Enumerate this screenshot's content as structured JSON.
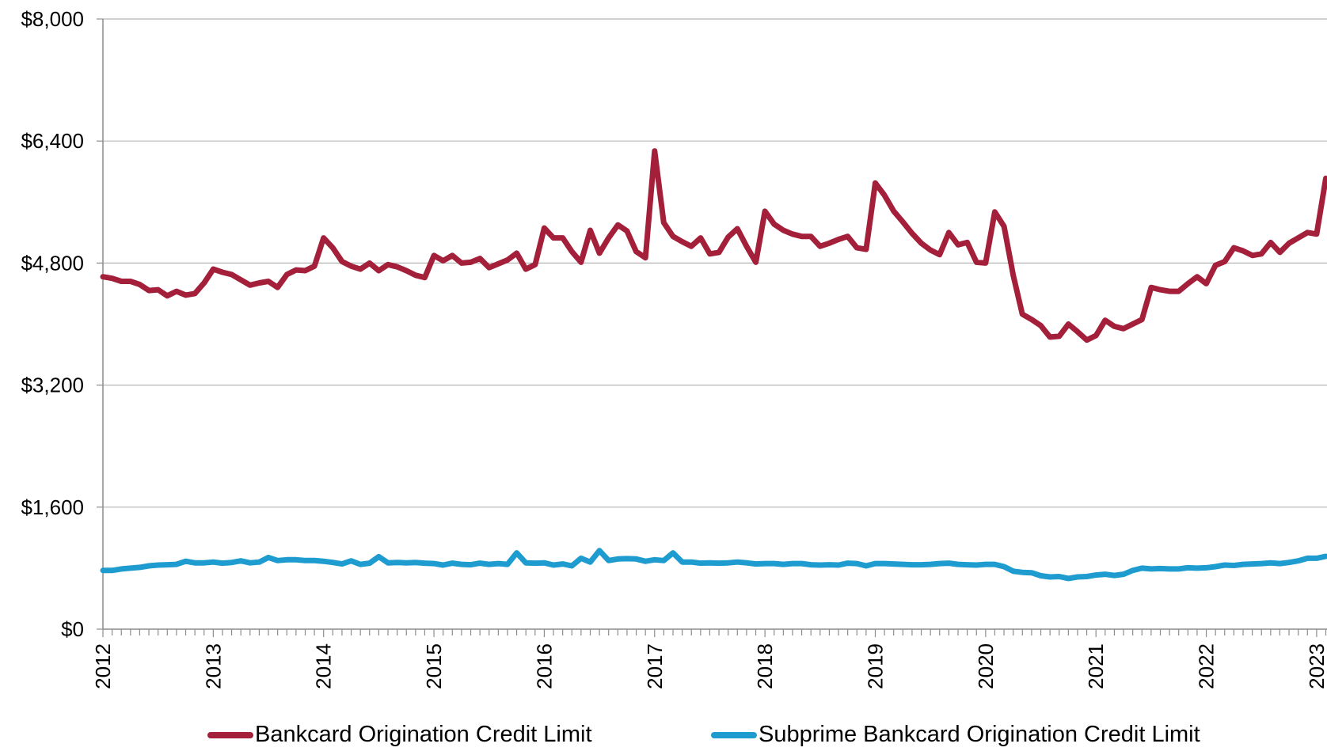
{
  "chart_data": {
    "type": "line",
    "title": "",
    "xlabel": "",
    "ylabel": "",
    "ylim": [
      0,
      8000
    ],
    "yticks": [
      "$0",
      "$1,600",
      "$3,200",
      "$4,800",
      "$6,400",
      "$8,000"
    ],
    "ytick_values": [
      0,
      1600,
      3200,
      4800,
      6400,
      8000
    ],
    "xlim": [
      2012.0,
      2023.0
    ],
    "xticks": [
      "2012",
      "2013",
      "2014",
      "2015",
      "2016",
      "2017",
      "2018",
      "2019",
      "2020",
      "2021",
      "2022",
      "2023"
    ],
    "xtick_values": [
      2012,
      2013,
      2014,
      2015,
      2016,
      2017,
      2018,
      2019,
      2020,
      2021,
      2022,
      2023
    ],
    "grid": "horizontal",
    "legend_position": "bottom",
    "series": [
      {
        "name": "Bankcard Origination Credit Limit",
        "color": "#a31f3a",
        "points": [
          [
            2012.0,
            4620
          ],
          [
            2012.083,
            4600
          ],
          [
            2012.167,
            4560
          ],
          [
            2012.25,
            4560
          ],
          [
            2012.333,
            4520
          ],
          [
            2012.417,
            4440
          ],
          [
            2012.5,
            4450
          ],
          [
            2012.583,
            4370
          ],
          [
            2012.667,
            4430
          ],
          [
            2012.75,
            4380
          ],
          [
            2012.833,
            4400
          ],
          [
            2012.917,
            4540
          ],
          [
            2013.0,
            4720
          ],
          [
            2013.083,
            4680
          ],
          [
            2013.167,
            4650
          ],
          [
            2013.25,
            4580
          ],
          [
            2013.333,
            4510
          ],
          [
            2013.417,
            4540
          ],
          [
            2013.5,
            4560
          ],
          [
            2013.583,
            4480
          ],
          [
            2013.667,
            4650
          ],
          [
            2013.75,
            4710
          ],
          [
            2013.833,
            4700
          ],
          [
            2013.917,
            4760
          ],
          [
            2014.0,
            5130
          ],
          [
            2014.083,
            5000
          ],
          [
            2014.167,
            4820
          ],
          [
            2014.25,
            4760
          ],
          [
            2014.333,
            4720
          ],
          [
            2014.417,
            4800
          ],
          [
            2014.5,
            4700
          ],
          [
            2014.583,
            4780
          ],
          [
            2014.667,
            4750
          ],
          [
            2014.75,
            4700
          ],
          [
            2014.833,
            4640
          ],
          [
            2014.917,
            4610
          ],
          [
            2015.0,
            4900
          ],
          [
            2015.083,
            4830
          ],
          [
            2015.167,
            4900
          ],
          [
            2015.25,
            4800
          ],
          [
            2015.333,
            4810
          ],
          [
            2015.417,
            4860
          ],
          [
            2015.5,
            4740
          ],
          [
            2015.583,
            4790
          ],
          [
            2015.667,
            4840
          ],
          [
            2015.75,
            4930
          ],
          [
            2015.833,
            4720
          ],
          [
            2015.917,
            4780
          ],
          [
            2016.0,
            5260
          ],
          [
            2016.083,
            5130
          ],
          [
            2016.167,
            5130
          ],
          [
            2016.25,
            4950
          ],
          [
            2016.333,
            4810
          ],
          [
            2016.417,
            5230
          ],
          [
            2016.5,
            4930
          ],
          [
            2016.583,
            5130
          ],
          [
            2016.667,
            5300
          ],
          [
            2016.75,
            5220
          ],
          [
            2016.833,
            4950
          ],
          [
            2016.917,
            4870
          ],
          [
            2017.0,
            6270
          ],
          [
            2017.083,
            5330
          ],
          [
            2017.167,
            5150
          ],
          [
            2017.25,
            5080
          ],
          [
            2017.333,
            5020
          ],
          [
            2017.417,
            5130
          ],
          [
            2017.5,
            4920
          ],
          [
            2017.583,
            4940
          ],
          [
            2017.667,
            5140
          ],
          [
            2017.75,
            5250
          ],
          [
            2017.833,
            5020
          ],
          [
            2017.917,
            4810
          ],
          [
            2018.0,
            5480
          ],
          [
            2018.083,
            5310
          ],
          [
            2018.167,
            5230
          ],
          [
            2018.25,
            5180
          ],
          [
            2018.333,
            5150
          ],
          [
            2018.417,
            5150
          ],
          [
            2018.5,
            5020
          ],
          [
            2018.583,
            5060
          ],
          [
            2018.667,
            5110
          ],
          [
            2018.75,
            5150
          ],
          [
            2018.833,
            5000
          ],
          [
            2018.917,
            4980
          ],
          [
            2019.0,
            5850
          ],
          [
            2019.083,
            5690
          ],
          [
            2019.167,
            5480
          ],
          [
            2019.25,
            5340
          ],
          [
            2019.333,
            5190
          ],
          [
            2019.417,
            5060
          ],
          [
            2019.5,
            4970
          ],
          [
            2019.583,
            4910
          ],
          [
            2019.667,
            5200
          ],
          [
            2019.75,
            5040
          ],
          [
            2019.833,
            5070
          ],
          [
            2019.917,
            4810
          ],
          [
            2020.0,
            4800
          ],
          [
            2020.083,
            5470
          ],
          [
            2020.167,
            5280
          ],
          [
            2020.25,
            4640
          ],
          [
            2020.333,
            4130
          ],
          [
            2020.417,
            4060
          ],
          [
            2020.5,
            3980
          ],
          [
            2020.583,
            3830
          ],
          [
            2020.667,
            3840
          ],
          [
            2020.75,
            4000
          ],
          [
            2020.833,
            3900
          ],
          [
            2020.917,
            3790
          ],
          [
            2021.0,
            3850
          ],
          [
            2021.083,
            4050
          ],
          [
            2021.167,
            3970
          ],
          [
            2021.25,
            3940
          ],
          [
            2021.333,
            4000
          ],
          [
            2021.417,
            4060
          ],
          [
            2021.5,
            4480
          ],
          [
            2021.583,
            4450
          ],
          [
            2021.667,
            4430
          ],
          [
            2021.75,
            4430
          ],
          [
            2021.833,
            4530
          ],
          [
            2021.917,
            4620
          ],
          [
            2022.0,
            4530
          ],
          [
            2022.083,
            4770
          ],
          [
            2022.167,
            4820
          ],
          [
            2022.25,
            5000
          ],
          [
            2022.333,
            4960
          ],
          [
            2022.417,
            4900
          ],
          [
            2022.5,
            4920
          ],
          [
            2022.583,
            5070
          ],
          [
            2022.667,
            4940
          ],
          [
            2022.75,
            5060
          ],
          [
            2022.833,
            5130
          ],
          [
            2022.917,
            5200
          ],
          [
            2023.0,
            5180
          ],
          [
            2023.083,
            5910
          ]
        ]
      },
      {
        "name": "Subprime Bankcard Origination Credit Limit",
        "color": "#1e9ccf",
        "points": [
          [
            2012.0,
            770
          ],
          [
            2012.083,
            770
          ],
          [
            2012.167,
            790
          ],
          [
            2012.25,
            800
          ],
          [
            2012.333,
            810
          ],
          [
            2012.417,
            830
          ],
          [
            2012.5,
            840
          ],
          [
            2012.583,
            845
          ],
          [
            2012.667,
            850
          ],
          [
            2012.75,
            890
          ],
          [
            2012.833,
            870
          ],
          [
            2012.917,
            870
          ],
          [
            2013.0,
            880
          ],
          [
            2013.083,
            865
          ],
          [
            2013.167,
            875
          ],
          [
            2013.25,
            895
          ],
          [
            2013.333,
            870
          ],
          [
            2013.417,
            880
          ],
          [
            2013.5,
            940
          ],
          [
            2013.583,
            900
          ],
          [
            2013.667,
            910
          ],
          [
            2013.75,
            910
          ],
          [
            2013.833,
            900
          ],
          [
            2013.917,
            900
          ],
          [
            2014.0,
            890
          ],
          [
            2014.083,
            875
          ],
          [
            2014.167,
            855
          ],
          [
            2014.25,
            895
          ],
          [
            2014.333,
            850
          ],
          [
            2014.417,
            865
          ],
          [
            2014.5,
            950
          ],
          [
            2014.583,
            870
          ],
          [
            2014.667,
            875
          ],
          [
            2014.75,
            870
          ],
          [
            2014.833,
            875
          ],
          [
            2014.917,
            865
          ],
          [
            2015.0,
            860
          ],
          [
            2015.083,
            840
          ],
          [
            2015.167,
            865
          ],
          [
            2015.25,
            850
          ],
          [
            2015.333,
            845
          ],
          [
            2015.417,
            865
          ],
          [
            2015.5,
            850
          ],
          [
            2015.583,
            860
          ],
          [
            2015.667,
            850
          ],
          [
            2015.75,
            1000
          ],
          [
            2015.833,
            870
          ],
          [
            2015.917,
            865
          ],
          [
            2016.0,
            870
          ],
          [
            2016.083,
            840
          ],
          [
            2016.167,
            855
          ],
          [
            2016.25,
            830
          ],
          [
            2016.333,
            930
          ],
          [
            2016.417,
            880
          ],
          [
            2016.5,
            1030
          ],
          [
            2016.583,
            900
          ],
          [
            2016.667,
            920
          ],
          [
            2016.75,
            925
          ],
          [
            2016.833,
            920
          ],
          [
            2016.917,
            890
          ],
          [
            2017.0,
            910
          ],
          [
            2017.083,
            900
          ],
          [
            2017.167,
            1000
          ],
          [
            2017.25,
            880
          ],
          [
            2017.333,
            880
          ],
          [
            2017.417,
            865
          ],
          [
            2017.5,
            870
          ],
          [
            2017.583,
            865
          ],
          [
            2017.667,
            870
          ],
          [
            2017.75,
            880
          ],
          [
            2017.833,
            870
          ],
          [
            2017.917,
            855
          ],
          [
            2018.0,
            860
          ],
          [
            2018.083,
            860
          ],
          [
            2018.167,
            850
          ],
          [
            2018.25,
            860
          ],
          [
            2018.333,
            860
          ],
          [
            2018.417,
            845
          ],
          [
            2018.5,
            840
          ],
          [
            2018.583,
            845
          ],
          [
            2018.667,
            840
          ],
          [
            2018.75,
            865
          ],
          [
            2018.833,
            860
          ],
          [
            2018.917,
            830
          ],
          [
            2019.0,
            860
          ],
          [
            2019.083,
            860
          ],
          [
            2019.167,
            855
          ],
          [
            2019.25,
            850
          ],
          [
            2019.333,
            845
          ],
          [
            2019.417,
            845
          ],
          [
            2019.5,
            850
          ],
          [
            2019.583,
            860
          ],
          [
            2019.667,
            865
          ],
          [
            2019.75,
            850
          ],
          [
            2019.833,
            845
          ],
          [
            2019.917,
            840
          ],
          [
            2020.0,
            850
          ],
          [
            2020.083,
            850
          ],
          [
            2020.167,
            820
          ],
          [
            2020.25,
            760
          ],
          [
            2020.333,
            745
          ],
          [
            2020.417,
            740
          ],
          [
            2020.5,
            700
          ],
          [
            2020.583,
            685
          ],
          [
            2020.667,
            690
          ],
          [
            2020.75,
            665
          ],
          [
            2020.833,
            685
          ],
          [
            2020.917,
            690
          ],
          [
            2021.0,
            710
          ],
          [
            2021.083,
            720
          ],
          [
            2021.167,
            705
          ],
          [
            2021.25,
            720
          ],
          [
            2021.333,
            770
          ],
          [
            2021.417,
            800
          ],
          [
            2021.5,
            790
          ],
          [
            2021.583,
            795
          ],
          [
            2021.667,
            790
          ],
          [
            2021.75,
            790
          ],
          [
            2021.833,
            805
          ],
          [
            2021.917,
            800
          ],
          [
            2022.0,
            805
          ],
          [
            2022.083,
            820
          ],
          [
            2022.167,
            840
          ],
          [
            2022.25,
            835
          ],
          [
            2022.333,
            850
          ],
          [
            2022.417,
            855
          ],
          [
            2022.5,
            860
          ],
          [
            2022.583,
            870
          ],
          [
            2022.667,
            860
          ],
          [
            2022.75,
            875
          ],
          [
            2022.833,
            895
          ],
          [
            2022.917,
            930
          ],
          [
            2023.0,
            930
          ],
          [
            2023.083,
            955
          ]
        ]
      }
    ]
  }
}
